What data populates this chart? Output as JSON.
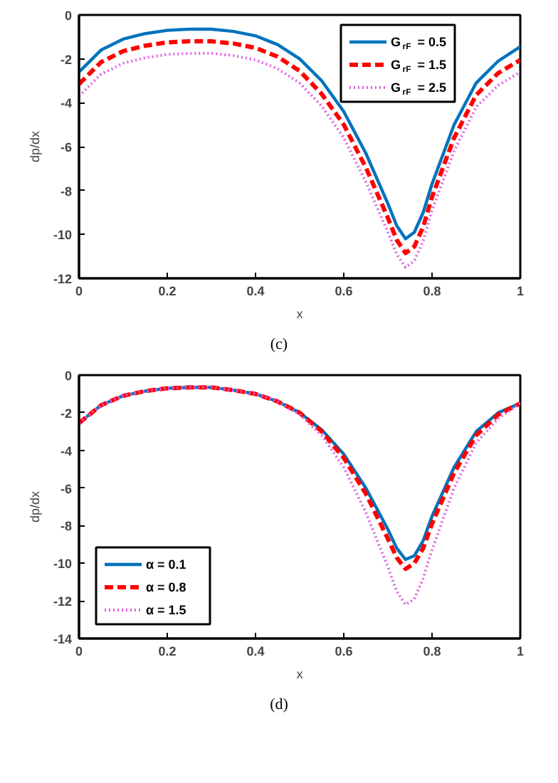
{
  "chart_data": [
    {
      "type": "line",
      "xlabel": "x",
      "ylabel": "dp/dx",
      "xlim": [
        0,
        1
      ],
      "ylim": [
        -12,
        0
      ],
      "xticks": [
        0,
        0.2,
        0.4,
        0.6,
        0.8,
        1
      ],
      "yticks": [
        -12,
        -10,
        -8,
        -6,
        -4,
        -2,
        0
      ],
      "grid": false,
      "legend": "top right",
      "annotations": [
        "(c)"
      ],
      "x": [
        0,
        0.05,
        0.1,
        0.15,
        0.2,
        0.25,
        0.3,
        0.35,
        0.4,
        0.45,
        0.5,
        0.55,
        0.6,
        0.65,
        0.7,
        0.72,
        0.74,
        0.76,
        0.78,
        0.8,
        0.85,
        0.9,
        0.95,
        1
      ],
      "series": [
        {
          "name": "G$_{rF}$ = 0.5",
          "color": "#0072bd",
          "line_style": "solid",
          "values": [
            -2.6,
            -1.6,
            -1.1,
            -0.85,
            -0.7,
            -0.65,
            -0.65,
            -0.75,
            -0.95,
            -1.35,
            -2.0,
            -3.0,
            -4.4,
            -6.3,
            -8.6,
            -9.6,
            -10.2,
            -9.9,
            -9.0,
            -7.7,
            -5.0,
            -3.1,
            -2.1,
            -1.45
          ]
        },
        {
          "name": "G$_{rF}$ = 1.5",
          "color": "#ff0000",
          "line_style": "dashed",
          "values": [
            -3.15,
            -2.15,
            -1.65,
            -1.4,
            -1.25,
            -1.2,
            -1.2,
            -1.3,
            -1.5,
            -1.9,
            -2.55,
            -3.6,
            -5.0,
            -6.95,
            -9.25,
            -10.25,
            -10.85,
            -10.55,
            -9.65,
            -8.3,
            -5.6,
            -3.65,
            -2.65,
            -2.05
          ]
        },
        {
          "name": "G$_{rF}$ = 2.5",
          "color": "#e060e0",
          "line_style": "dotted",
          "values": [
            -3.7,
            -2.7,
            -2.2,
            -1.95,
            -1.8,
            -1.75,
            -1.75,
            -1.85,
            -2.05,
            -2.45,
            -3.1,
            -4.15,
            -5.6,
            -7.6,
            -9.9,
            -10.9,
            -11.5,
            -11.2,
            -10.3,
            -8.9,
            -6.2,
            -4.2,
            -3.2,
            -2.6
          ]
        }
      ]
    },
    {
      "type": "line",
      "xlabel": "x",
      "ylabel": "dp/dx",
      "xlim": [
        0,
        1
      ],
      "ylim": [
        -14,
        0
      ],
      "xticks": [
        0,
        0.2,
        0.4,
        0.6,
        0.8,
        1
      ],
      "yticks": [
        -14,
        -12,
        -10,
        -8,
        -6,
        -4,
        -2,
        0
      ],
      "grid": false,
      "legend": "bottom left",
      "annotations": [
        "(d)"
      ],
      "x": [
        0,
        0.05,
        0.1,
        0.15,
        0.2,
        0.25,
        0.3,
        0.35,
        0.4,
        0.45,
        0.5,
        0.55,
        0.6,
        0.65,
        0.7,
        0.72,
        0.74,
        0.76,
        0.78,
        0.8,
        0.85,
        0.9,
        0.95,
        1
      ],
      "series": [
        {
          "name": "α = 0.1",
          "color": "#0072bd",
          "line_style": "solid",
          "values": [
            -2.55,
            -1.6,
            -1.1,
            -0.85,
            -0.7,
            -0.65,
            -0.65,
            -0.8,
            -1.0,
            -1.4,
            -2.0,
            -2.9,
            -4.2,
            -6.0,
            -8.2,
            -9.2,
            -9.8,
            -9.6,
            -8.8,
            -7.5,
            -4.9,
            -3.0,
            -2.0,
            -1.5
          ]
        },
        {
          "name": "α = 0.8",
          "color": "#ff0000",
          "line_style": "dashed",
          "values": [
            -2.55,
            -1.6,
            -1.1,
            -0.85,
            -0.7,
            -0.65,
            -0.65,
            -0.8,
            -1.0,
            -1.4,
            -2.0,
            -3.0,
            -4.4,
            -6.3,
            -8.7,
            -9.7,
            -10.3,
            -10.0,
            -9.2,
            -7.9,
            -5.2,
            -3.2,
            -2.1,
            -1.5
          ]
        },
        {
          "name": "α = 1.5",
          "color": "#e060e0",
          "line_style": "dotted",
          "values": [
            -2.55,
            -1.6,
            -1.1,
            -0.85,
            -0.7,
            -0.65,
            -0.65,
            -0.8,
            -1.0,
            -1.4,
            -2.1,
            -3.2,
            -4.9,
            -7.3,
            -10.2,
            -11.5,
            -12.2,
            -11.9,
            -10.8,
            -9.3,
            -6.0,
            -3.6,
            -2.3,
            -1.5
          ]
        }
      ]
    }
  ]
}
